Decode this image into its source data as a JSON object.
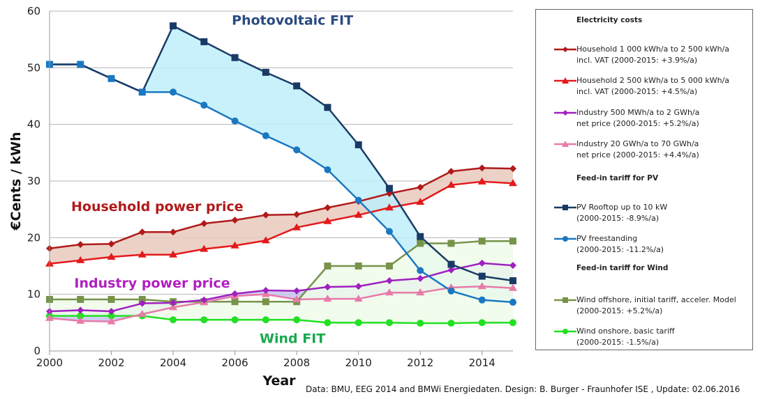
{
  "chart_data": {
    "type": "line",
    "title": "",
    "xlabel": "Year",
    "ylabel": "€Cents / kWh",
    "xlim": [
      2000,
      2015
    ],
    "ylim": [
      0,
      60
    ],
    "grid": true,
    "legend_position": "right",
    "x": [
      2000,
      2001,
      2002,
      2003,
      2004,
      2005,
      2006,
      2007,
      2008,
      2009,
      2010,
      2011,
      2012,
      2013,
      2014,
      2015
    ],
    "x_ticks": [
      "2000",
      "2002",
      "2004",
      "2006",
      "2008",
      "2010",
      "2012",
      "2014"
    ],
    "x_tick_values": [
      2000,
      2002,
      2004,
      2006,
      2008,
      2010,
      2012,
      2014
    ],
    "y_ticks": [
      "0",
      "10",
      "20",
      "30",
      "40",
      "50",
      "60"
    ],
    "y_tick_values": [
      0,
      10,
      20,
      30,
      40,
      50,
      60
    ],
    "series": [
      {
        "key": "hh1",
        "name": "Household 1 000 kWh/a to 2 500 kWh/a incl. VAT (2000-2015: +3.9%/a)",
        "color": "#b01a1a",
        "marker": "diamond",
        "values": [
          18.1,
          18.8,
          18.9,
          21.0,
          21.0,
          22.5,
          23.1,
          24.0,
          24.1,
          25.3,
          26.4,
          27.8,
          28.9,
          31.7,
          32.3,
          32.2
        ]
      },
      {
        "key": "hh2",
        "name": "Household 2 500 kWh/a to 5 000 kWh/a incl. VAT (2000-2015: +4.5%/a)",
        "color": "#e3191b",
        "marker": "triangle",
        "values": [
          15.4,
          16.0,
          16.6,
          17.0,
          17.0,
          18.0,
          18.6,
          19.5,
          21.8,
          22.9,
          24.0,
          25.3,
          26.3,
          29.3,
          29.9,
          29.6
        ]
      },
      {
        "key": "ind1",
        "name": "Industry 500 MWh/a to 2 GWh/a net price (2000-2015: +5.2%/a)",
        "color": "#a020c0",
        "marker": "diamond",
        "values": [
          7.0,
          7.2,
          7.0,
          8.4,
          8.5,
          9.0,
          10.1,
          10.7,
          10.6,
          11.3,
          11.4,
          12.4,
          12.8,
          14.3,
          15.5,
          15.1
        ]
      },
      {
        "key": "ind2",
        "name": "Industry 20 GWh/a to 70 GWh/a net price (2000-2015: +4.4%/a)",
        "color": "#e87aa8",
        "marker": "triangle",
        "values": [
          5.8,
          5.3,
          5.2,
          6.5,
          7.7,
          8.6,
          9.7,
          10.0,
          9.1,
          9.2,
          9.2,
          10.3,
          10.3,
          11.2,
          11.4,
          11.1
        ]
      },
      {
        "key": "pvroof",
        "name": "PV Rooftop up to 10 kW (2000-2015: -8.9%/a)",
        "color": "#1a3a66",
        "marker": "square",
        "values": [
          50.6,
          50.6,
          48.1,
          45.7,
          57.4,
          54.6,
          51.8,
          49.2,
          46.8,
          43.0,
          36.4,
          28.7,
          20.2,
          15.3,
          13.2,
          12.4
        ]
      },
      {
        "key": "pvfree",
        "name": "PV freestanding (2000-2015: -11.2%/a)",
        "color": "#1a78c2",
        "marker": "circle",
        "values": [
          50.6,
          50.6,
          48.1,
          45.7,
          45.7,
          43.4,
          40.6,
          38.0,
          35.5,
          32.0,
          26.6,
          21.1,
          14.2,
          10.6,
          9.0,
          8.6
        ]
      },
      {
        "key": "windoff",
        "name": "Wind offshore, initial tariff, acceler. Model (2000-2015: +5.2%/a)",
        "color": "#77934a",
        "marker": "square",
        "values": [
          9.1,
          9.1,
          9.1,
          9.1,
          8.7,
          8.7,
          8.7,
          8.7,
          8.7,
          15.0,
          15.0,
          15.0,
          19.0,
          19.0,
          19.4,
          19.4
        ]
      },
      {
        "key": "windon",
        "name": "Wind onshore, basic tariff (2000-2015: -1.5%/a)",
        "color": "#22e022",
        "marker": "circle",
        "values": [
          6.2,
          6.2,
          6.2,
          6.2,
          5.5,
          5.5,
          5.5,
          5.5,
          5.5,
          5.0,
          5.0,
          5.0,
          4.9,
          4.9,
          5.0,
          5.0
        ]
      }
    ],
    "bands": [
      {
        "between": [
          "hh1",
          "hh2"
        ],
        "color": "#e9c9bd"
      },
      {
        "between": [
          "ind1",
          "ind2"
        ],
        "color": "#c4c6ee"
      },
      {
        "between": [
          "pvroof",
          "pvfree"
        ],
        "color": "#bfeefa"
      },
      {
        "between": [
          "windoff",
          "windon"
        ],
        "color": "#eefcea"
      }
    ],
    "annotations": [
      {
        "text": "Photovoltaic FIT",
        "color": "#2a4a80",
        "x": 2005.9,
        "y": 57.6
      },
      {
        "text": "Household power price",
        "color": "#b01a1a",
        "x": 2000.7,
        "y": 24.7
      },
      {
        "text": "Industry power price",
        "color": "#b020c0",
        "x": 2000.8,
        "y": 11.2
      },
      {
        "text": "Wind FIT",
        "color": "#18a850",
        "x": 2006.8,
        "y": 1.4
      }
    ]
  },
  "legend": {
    "heading_costs": "Electricity costs",
    "heading_pv": "Feed-in tariff for PV",
    "heading_wind": "Feed-in tariff for Wind",
    "items": [
      {
        "line1": "Household 1 000 kWh/a to 2 500 kWh/a",
        "line2": "incl. VAT (2000-2015: +3.9%/a)"
      },
      {
        "line1": "Household 2 500 kWh/a to 5 000 kWh/a",
        "line2": "incl. VAT (2000-2015: +4.5%/a)"
      },
      {
        "line1": "Industry 500 MWh/a to 2 GWh/a",
        "line2": "net price (2000-2015: +5.2%/a)"
      },
      {
        "line1": "Industry 20 GWh/a to 70 GWh/a",
        "line2": "net price (2000-2015: +4.4%/a)"
      },
      {
        "line1": "PV Rooftop up to 10 kW",
        "line2": "(2000-2015: -8.9%/a)"
      },
      {
        "line1": "PV freestanding",
        "line2": "(2000-2015: -11.2%/a)"
      },
      {
        "line1": "Wind offshore, initial tariff, acceler. Model",
        "line2": "(2000-2015: +5.2%/a)"
      },
      {
        "line1": "Wind onshore, basic tariff",
        "line2": "(2000-2015: -1.5%/a)"
      }
    ]
  },
  "source_note": "Data: BMU, EEG 2014 and BMWi Energiedaten. Design: B. Burger - Fraunhofer ISE , Update: 02.06.2016"
}
